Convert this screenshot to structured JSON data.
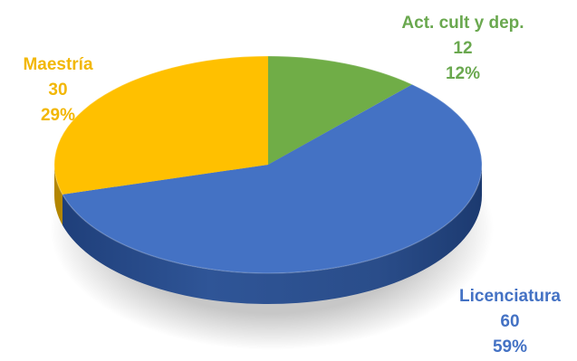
{
  "chart_data": {
    "type": "pie",
    "title": "",
    "slices": [
      {
        "label": "Act. cult y dep.",
        "value": 12,
        "percent": "12%",
        "color": "#70AD47"
      },
      {
        "label": "Licenciatura",
        "value": 60,
        "percent": "59%",
        "color": "#4472C4"
      },
      {
        "label": "Maestría",
        "value": 30,
        "percent": "29%",
        "color": "#FFC000"
      }
    ],
    "style": "3d",
    "legend": "none"
  }
}
